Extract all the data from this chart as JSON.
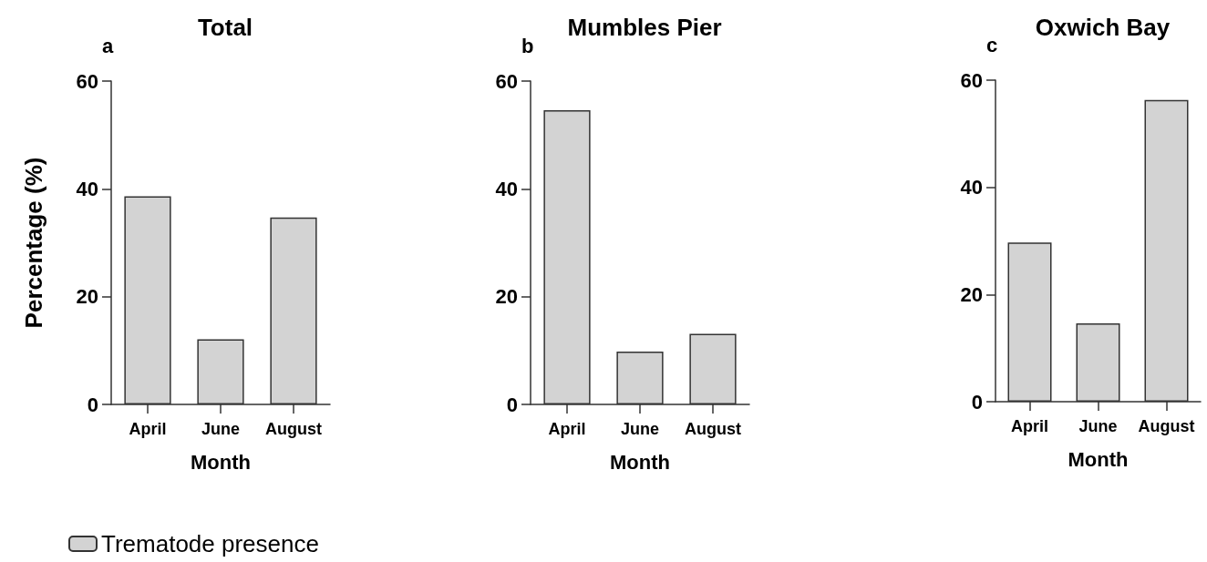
{
  "chart_data": [
    {
      "type": "bar",
      "title": "Total",
      "annotations": [
        "a"
      ],
      "xlabel": "Month",
      "ylabel": "Percentage (%)",
      "categories": [
        "April",
        "June",
        "August"
      ],
      "series": [
        {
          "name": "Trematode presence",
          "color": "#d3d3d3",
          "values": [
            38.6,
            12.1,
            34.7
          ]
        }
      ],
      "ylim": [
        0,
        60
      ],
      "yticks": [
        0,
        20,
        40,
        60
      ],
      "grid": false,
      "legend": "bottom left"
    },
    {
      "type": "bar",
      "title": "Mumbles Pier",
      "annotations": [
        "b"
      ],
      "xlabel": "Month",
      "categories": [
        "April",
        "June",
        "August"
      ],
      "series": [
        {
          "color": "#d3d3d3",
          "values": [
            54.6,
            9.8,
            13.1
          ]
        }
      ],
      "ylim": [
        0,
        60
      ],
      "yticks": [
        0,
        20,
        40,
        60
      ],
      "grid": false
    },
    {
      "type": "bar",
      "title": "Oxwich Bay",
      "annotations": [
        "c"
      ],
      "xlabel": "Month",
      "categories": [
        "April",
        "June",
        "August"
      ],
      "series": [
        {
          "color": "#d3d3d3",
          "values": [
            29.7,
            14.6,
            56.3
          ]
        }
      ],
      "ylim": [
        0,
        60
      ],
      "yticks": [
        0,
        20,
        40,
        60
      ],
      "grid": false
    }
  ]
}
